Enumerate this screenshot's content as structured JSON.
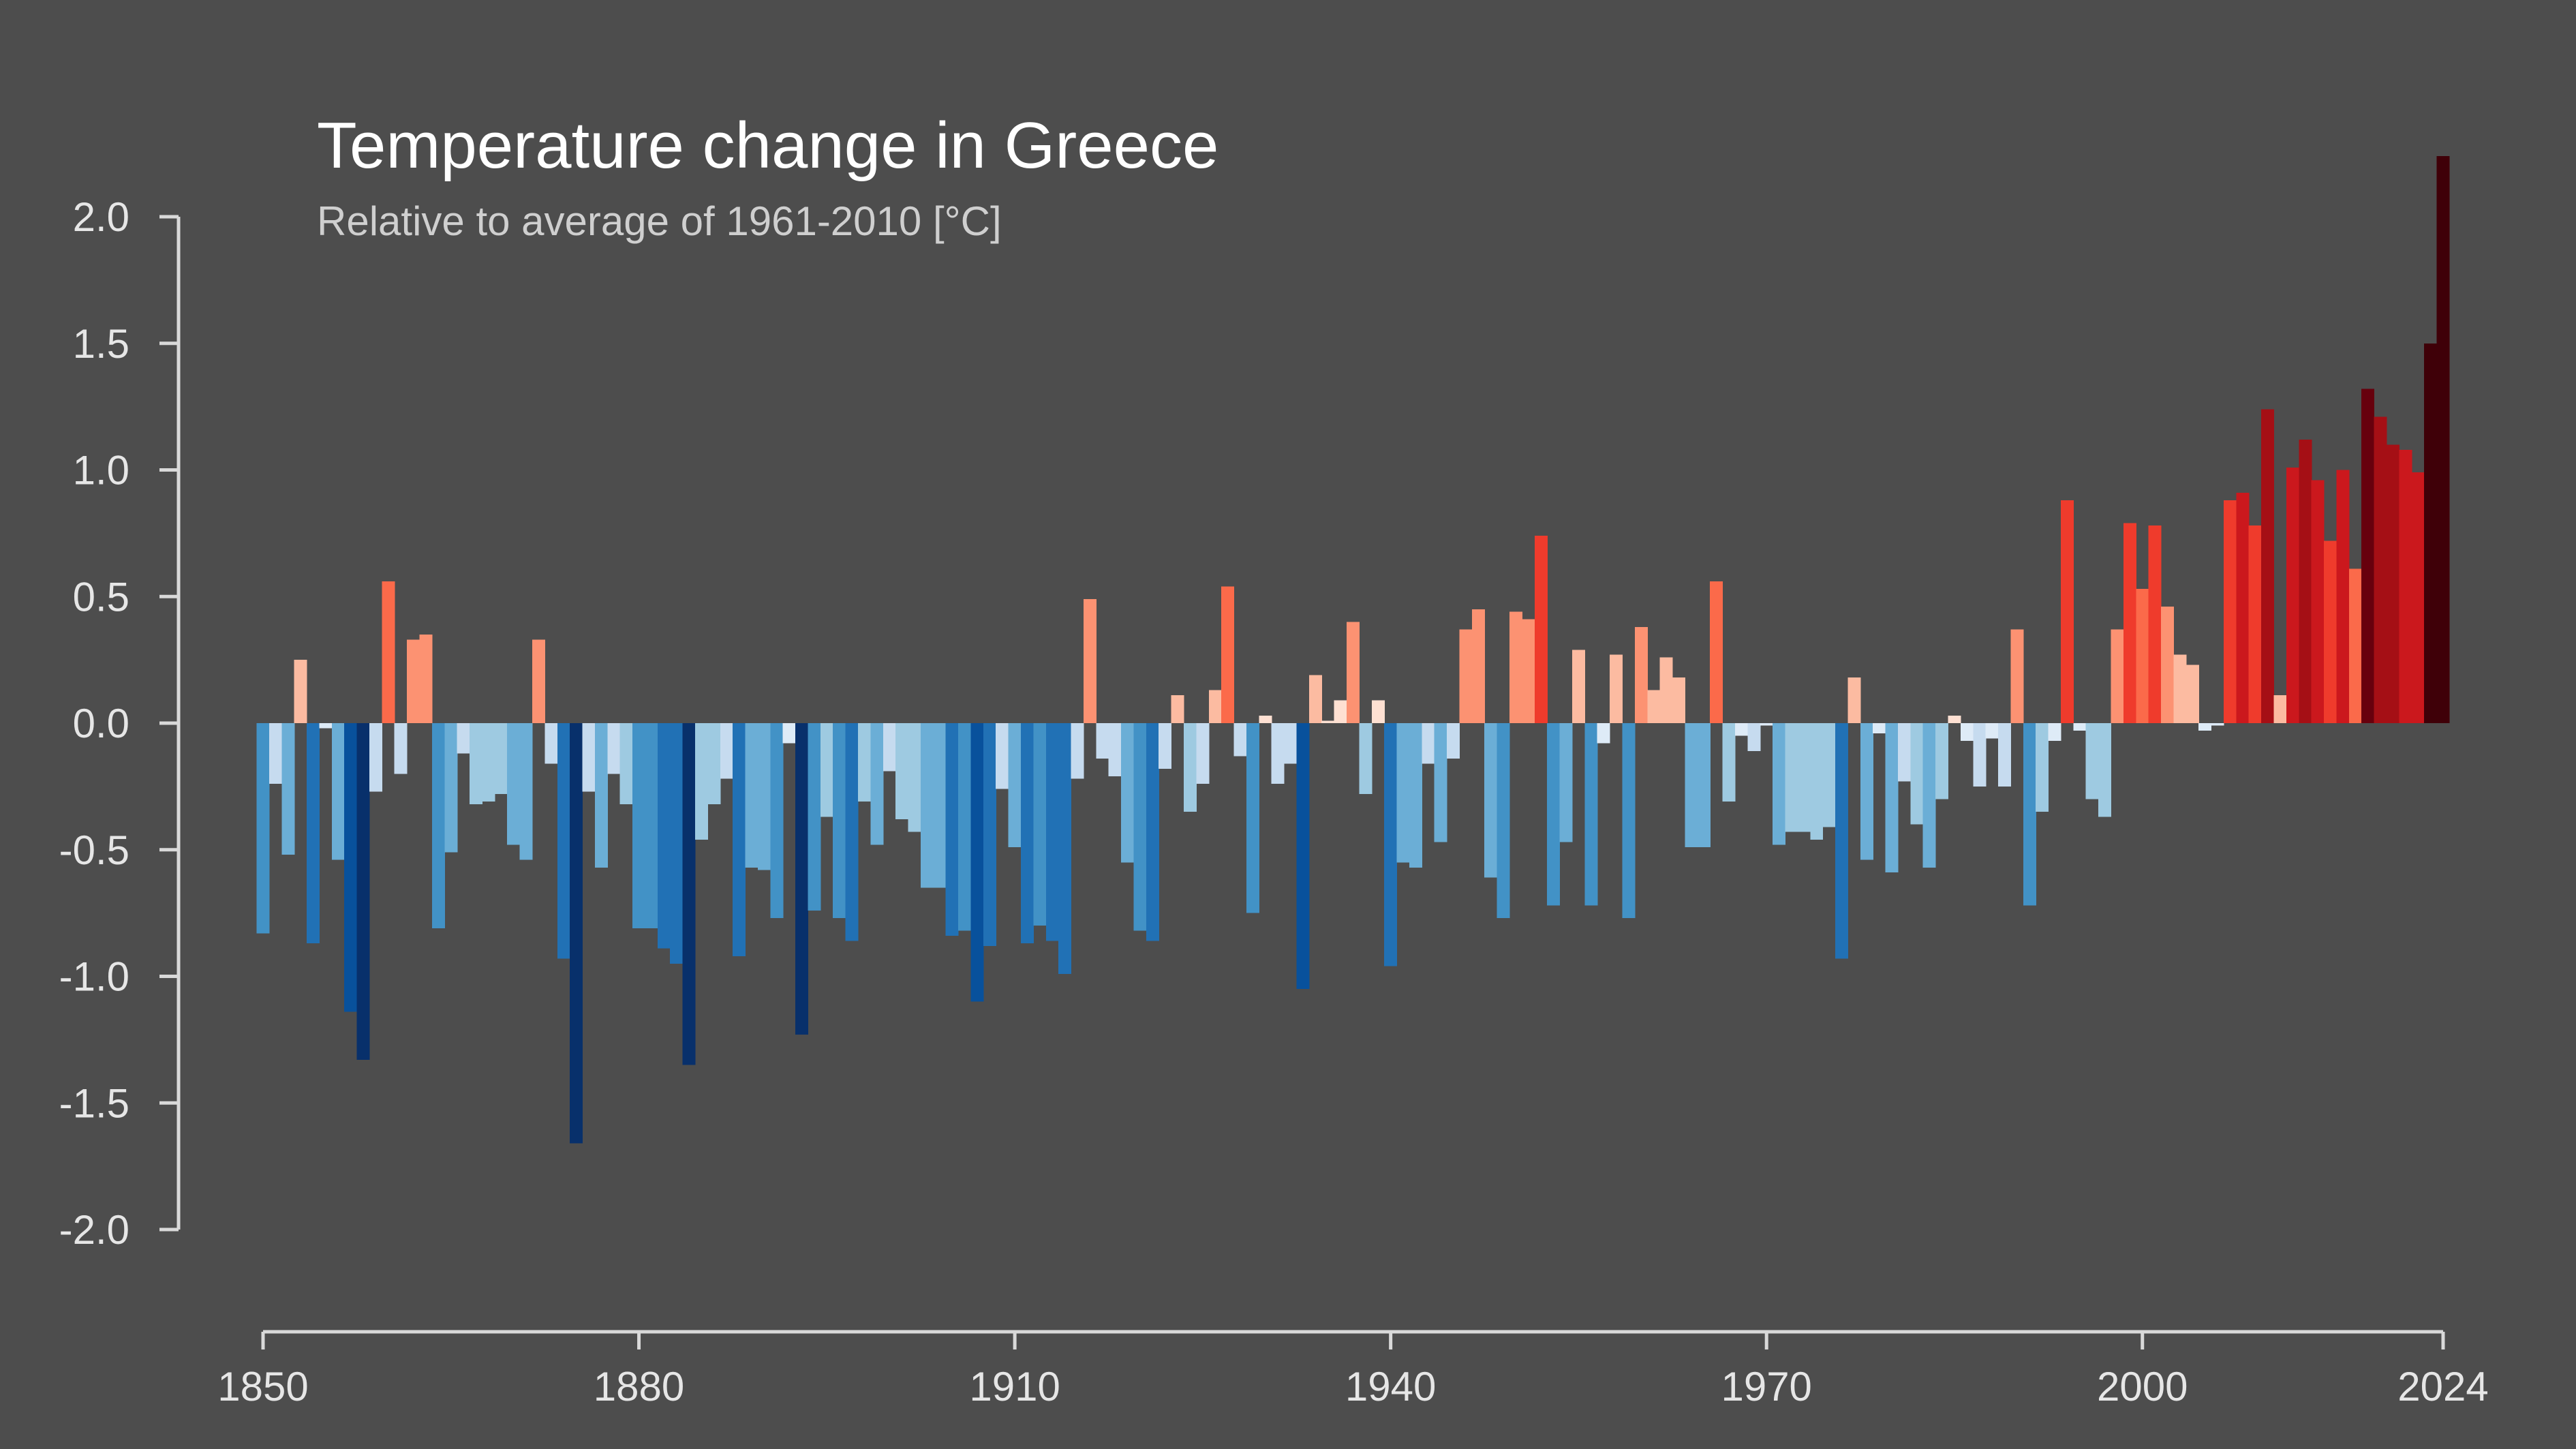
{
  "chart_data": {
    "type": "bar",
    "title": "Temperature change in Greece",
    "subtitle": "Relative to average of 1961-2010  [°C]",
    "xlabel": "",
    "ylabel": "",
    "x_range": [
      1850,
      2024
    ],
    "ylim": [
      -2.0,
      2.0
    ],
    "x_ticks": [
      1850,
      1880,
      1910,
      1940,
      1970,
      2000,
      2024
    ],
    "y_ticks": [
      2.0,
      1.5,
      1.0,
      0.5,
      0.0,
      -0.5,
      -1.0,
      -1.5,
      -2.0
    ],
    "y_tick_labels": [
      "2.0",
      "1.5",
      "1.0",
      "0.5",
      "0.0",
      "-0.5",
      "-1.0",
      "-1.5",
      "-2.0"
    ],
    "grid": false,
    "legend": "none",
    "color_scale": {
      "cold": [
        "#08306b",
        "#08519c",
        "#2171b5",
        "#4292c6",
        "#6baed6",
        "#9ecae1",
        "#c6dbef",
        "#deebf7"
      ],
      "warm": [
        "#fee0d2",
        "#fcbba1",
        "#fc9272",
        "#fb6a4a",
        "#ef3b2c",
        "#cb181d",
        "#a50f15",
        "#67000d",
        "#3f0008"
      ]
    },
    "years": [
      1850,
      1851,
      1852,
      1853,
      1854,
      1855,
      1856,
      1857,
      1858,
      1859,
      1860,
      1861,
      1862,
      1863,
      1864,
      1865,
      1866,
      1867,
      1868,
      1869,
      1870,
      1871,
      1872,
      1873,
      1874,
      1875,
      1876,
      1877,
      1878,
      1879,
      1880,
      1881,
      1882,
      1883,
      1884,
      1885,
      1886,
      1887,
      1888,
      1889,
      1890,
      1891,
      1892,
      1893,
      1894,
      1895,
      1896,
      1897,
      1898,
      1899,
      1900,
      1901,
      1902,
      1903,
      1904,
      1905,
      1906,
      1907,
      1908,
      1909,
      1910,
      1911,
      1912,
      1913,
      1914,
      1915,
      1916,
      1917,
      1918,
      1919,
      1920,
      1921,
      1922,
      1923,
      1924,
      1925,
      1926,
      1927,
      1928,
      1929,
      1930,
      1931,
      1932,
      1933,
      1934,
      1935,
      1936,
      1937,
      1938,
      1939,
      1940,
      1941,
      1942,
      1943,
      1944,
      1945,
      1946,
      1947,
      1948,
      1949,
      1950,
      1951,
      1952,
      1953,
      1954,
      1955,
      1956,
      1957,
      1958,
      1959,
      1960,
      1961,
      1962,
      1963,
      1964,
      1965,
      1966,
      1967,
      1968,
      1969,
      1970,
      1971,
      1972,
      1973,
      1974,
      1975,
      1976,
      1977,
      1978,
      1979,
      1980,
      1981,
      1982,
      1983,
      1984,
      1985,
      1986,
      1987,
      1988,
      1989,
      1990,
      1991,
      1992,
      1993,
      1994,
      1995,
      1996,
      1997,
      1998,
      1999,
      2000,
      2001,
      2002,
      2003,
      2004,
      2005,
      2006,
      2007,
      2008,
      2009,
      2010,
      2011,
      2012,
      2013,
      2014,
      2015,
      2016,
      2017,
      2018,
      2019,
      2020,
      2021,
      2022,
      2023,
      2024
    ],
    "values": [
      -0.83,
      -0.24,
      -0.52,
      0.25,
      -0.87,
      -0.02,
      -0.54,
      -1.14,
      -1.33,
      -0.27,
      0.56,
      -0.2,
      0.33,
      0.35,
      -0.81,
      -0.51,
      -0.12,
      -0.32,
      -0.31,
      -0.28,
      -0.48,
      -0.54,
      0.33,
      -0.16,
      -0.93,
      -1.66,
      -0.27,
      -0.57,
      -0.2,
      -0.32,
      -0.81,
      -0.81,
      -0.89,
      -0.95,
      -1.35,
      -0.46,
      -0.32,
      -0.22,
      -0.92,
      -0.57,
      -0.58,
      -0.77,
      -0.08,
      -1.23,
      -0.74,
      -0.37,
      -0.77,
      -0.86,
      -0.31,
      -0.48,
      -0.19,
      -0.38,
      -0.43,
      -0.65,
      -0.65,
      -0.84,
      -0.82,
      -1.1,
      -0.88,
      -0.26,
      -0.49,
      -0.87,
      -0.8,
      -0.86,
      -0.99,
      -0.22,
      0.49,
      -0.14,
      -0.21,
      -0.55,
      -0.82,
      -0.86,
      -0.18,
      0.11,
      -0.35,
      -0.24,
      0.13,
      0.54,
      -0.13,
      -0.75,
      0.03,
      -0.24,
      -0.16,
      -1.05,
      0.19,
      0.01,
      0.09,
      0.4,
      -0.28,
      0.09,
      -0.96,
      -0.55,
      -0.57,
      -0.16,
      -0.47,
      -0.14,
      0.37,
      0.45,
      -0.61,
      -0.77,
      0.44,
      0.41,
      0.74,
      -0.72,
      -0.47,
      0.29,
      -0.72,
      -0.08,
      0.27,
      -0.77,
      0.38,
      0.13,
      0.26,
      0.18,
      -0.49,
      -0.49,
      0.56,
      -0.31,
      -0.05,
      -0.11,
      -0.01,
      -0.48,
      -0.43,
      -0.43,
      -0.46,
      -0.41,
      -0.93,
      0.18,
      -0.54,
      -0.04,
      -0.59,
      -0.23,
      -0.4,
      -0.57,
      -0.3,
      0.03,
      -0.07,
      -0.25,
      -0.06,
      -0.25,
      0.37,
      -0.72,
      -0.35,
      -0.07,
      0.88,
      -0.03,
      -0.3,
      -0.37,
      0.37,
      0.79,
      0.53,
      0.78,
      0.46,
      0.27,
      0.23,
      -0.03,
      -0.01,
      0.88,
      0.91,
      0.78,
      1.24,
      0.11,
      1.01,
      1.12,
      0.96,
      0.72,
      1.0,
      0.61,
      1.32,
      1.21,
      1.1,
      1.08,
      0.99,
      1.5,
      2.24
    ]
  }
}
